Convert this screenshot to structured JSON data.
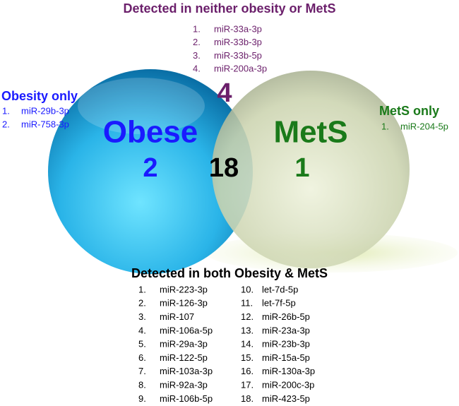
{
  "neither": {
    "title": "Detected in neither obesity or MetS",
    "count": "4",
    "items": [
      {
        "n": "1.",
        "name": "miR-33a-3p"
      },
      {
        "n": "2.",
        "name": "miR-33b-3p"
      },
      {
        "n": "3.",
        "name": "miR-33b-5p"
      },
      {
        "n": "4.",
        "name": "miR-200a-3p"
      }
    ]
  },
  "obesity_only": {
    "title": "Obesity only",
    "items": [
      {
        "n": "1.",
        "name": "miR-29b-3p"
      },
      {
        "n": "2.",
        "name": "miR-758-3p"
      }
    ]
  },
  "mets_only": {
    "title": "MetS only",
    "items": [
      {
        "n": "1.",
        "name": "miR-204-5p"
      }
    ]
  },
  "circles": {
    "obese": {
      "label": "Obese",
      "count": "2"
    },
    "mets": {
      "label": "MetS",
      "count": "1"
    },
    "overlap": "18"
  },
  "both": {
    "title": "Detected in both Obesity & MetS",
    "items": [
      {
        "n": "1.",
        "name": "miR-223-3p"
      },
      {
        "n": "2.",
        "name": "miR-126-3p"
      },
      {
        "n": "3.",
        "name": "miR-107"
      },
      {
        "n": "4.",
        "name": "miR-106a-5p"
      },
      {
        "n": "5.",
        "name": "miR-29a-3p"
      },
      {
        "n": "6.",
        "name": "miR-122-5p"
      },
      {
        "n": "7.",
        "name": "miR-103a-3p"
      },
      {
        "n": "8.",
        "name": "miR-92a-3p"
      },
      {
        "n": "9.",
        "name": "miR-106b-5p"
      },
      {
        "n": "10.",
        "name": "let-7d-5p"
      },
      {
        "n": "11.",
        "name": "let-7f-5p"
      },
      {
        "n": "12.",
        "name": "miR-26b-5p"
      },
      {
        "n": "13.",
        "name": "miR-23a-3p"
      },
      {
        "n": "14.",
        "name": "miR-23b-3p"
      },
      {
        "n": "15.",
        "name": "miR-15a-5p"
      },
      {
        "n": "16.",
        "name": "miR-130a-3p"
      },
      {
        "n": "17.",
        "name": "miR-200c-3p"
      },
      {
        "n": "18.",
        "name": "miR-423-5p"
      }
    ]
  }
}
